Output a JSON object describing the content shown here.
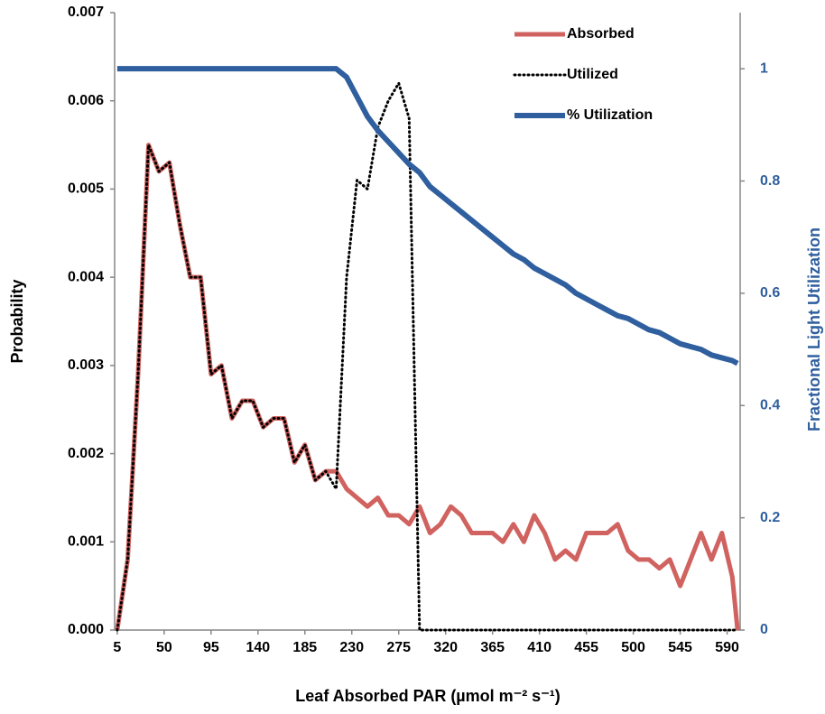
{
  "chart_data": {
    "type": "line",
    "x_label": "Leaf Absorbed PAR (µmol m⁻² s⁻¹)",
    "y_label": "Probability",
    "y2_label": "Fractional Light Utilization",
    "x": [
      5,
      15,
      25,
      35,
      45,
      55,
      65,
      75,
      85,
      95,
      105,
      115,
      125,
      135,
      145,
      155,
      165,
      175,
      185,
      195,
      205,
      215,
      225,
      235,
      245,
      255,
      265,
      275,
      285,
      295,
      305,
      315,
      325,
      335,
      345,
      355,
      365,
      375,
      385,
      395,
      405,
      415,
      425,
      435,
      445,
      455,
      465,
      475,
      485,
      495,
      505,
      515,
      525,
      535,
      545,
      555,
      565,
      575,
      585,
      595,
      600
    ],
    "series": [
      {
        "name": "Absorbed",
        "color": "#d0625f",
        "style": "solid",
        "axis": "y",
        "values": [
          0,
          0.0008,
          0.0029,
          0.0055,
          0.0052,
          0.0053,
          0.0046,
          0.004,
          0.004,
          0.0029,
          0.003,
          0.0024,
          0.0026,
          0.0026,
          0.0023,
          0.0024,
          0.0024,
          0.0019,
          0.0021,
          0.0017,
          0.0018,
          0.0018,
          0.0016,
          0.0015,
          0.0014,
          0.0015,
          0.0013,
          0.0013,
          0.0012,
          0.0014,
          0.0011,
          0.0012,
          0.0014,
          0.0013,
          0.0011,
          0.0011,
          0.0011,
          0.001,
          0.0012,
          0.001,
          0.0013,
          0.0011,
          0.0008,
          0.0009,
          0.0008,
          0.0011,
          0.0011,
          0.0011,
          0.0012,
          0.0009,
          0.0008,
          0.0008,
          0.0007,
          0.0008,
          0.0005,
          0.0008,
          0.0011,
          0.0008,
          0.0011,
          0.0006,
          0
        ]
      },
      {
        "name": "Utilized",
        "color": "#000000",
        "style": "dotted",
        "axis": "y",
        "values": [
          0,
          0.0008,
          0.0029,
          0.0055,
          0.0052,
          0.0053,
          0.0046,
          0.004,
          0.004,
          0.0029,
          0.003,
          0.0024,
          0.0026,
          0.0026,
          0.0023,
          0.0024,
          0.0024,
          0.0019,
          0.0021,
          0.0017,
          0.0018,
          0.0016,
          0.004,
          0.0051,
          0.005,
          0.0057,
          0.006,
          0.0062,
          0.0058,
          0,
          0,
          0,
          0,
          0,
          0,
          0,
          0,
          0,
          0,
          0,
          0,
          0,
          0,
          0,
          0,
          0,
          0,
          0,
          0,
          0,
          0,
          0,
          0,
          0,
          0,
          0,
          0,
          0,
          0,
          0,
          0
        ]
      },
      {
        "name": "% Utilization",
        "color": "#2f5f9e",
        "style": "solid",
        "axis": "y2",
        "values": [
          1,
          1,
          1,
          1,
          1,
          1,
          1,
          1,
          1,
          1,
          1,
          1,
          1,
          1,
          1,
          1,
          1,
          1,
          1,
          1,
          1,
          1,
          0.985,
          0.95,
          0.915,
          0.89,
          0.87,
          0.85,
          0.83,
          0.815,
          0.79,
          0.775,
          0.76,
          0.745,
          0.73,
          0.715,
          0.7,
          0.685,
          0.67,
          0.66,
          0.645,
          0.635,
          0.625,
          0.615,
          0.6,
          0.59,
          0.58,
          0.57,
          0.56,
          0.555,
          0.545,
          0.535,
          0.53,
          0.52,
          0.51,
          0.505,
          0.5,
          0.49,
          0.485,
          0.48,
          0.475
        ]
      }
    ],
    "xlim": [
      2.5,
      602.5
    ],
    "xticks": [
      5,
      50,
      95,
      140,
      185,
      230,
      275,
      320,
      365,
      410,
      455,
      500,
      545,
      590
    ],
    "ylim": [
      0,
      0.007
    ],
    "yticks": [
      {
        "value": 0,
        "label": "0.000"
      },
      {
        "value": 0.001,
        "label": "0.001"
      },
      {
        "value": 0.002,
        "label": "0.002"
      },
      {
        "value": 0.003,
        "label": "0.003"
      },
      {
        "value": 0.004,
        "label": "0.004"
      },
      {
        "value": 0.005,
        "label": "0.005"
      },
      {
        "value": 0.006,
        "label": "0.006"
      },
      {
        "value": 0.007,
        "label": "0.007"
      }
    ],
    "y2lim": [
      0,
      1.1
    ],
    "y2ticks": [
      0,
      0.2,
      0.4,
      0.6,
      0.8,
      1
    ],
    "y2_color": "#2f5f9e",
    "grid": false,
    "legend": "top-right"
  }
}
